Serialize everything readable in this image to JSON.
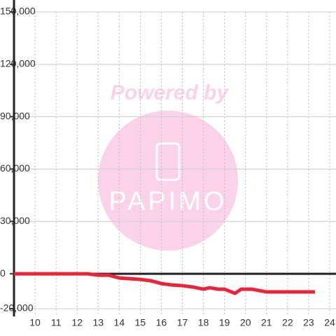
{
  "chart_data": {
    "type": "line",
    "watermark": {
      "top": "Powered by",
      "brand": "PAPIMO"
    },
    "x": [
      9,
      12.5,
      13,
      13.5,
      14,
      14.5,
      15,
      15.5,
      16,
      16.5,
      17,
      17.5,
      18,
      18.3,
      18.7,
      19,
      19.5,
      19.8,
      20.3,
      21,
      22,
      23.3
    ],
    "series": [
      {
        "color": "#e8253a",
        "values": [
          0,
          0,
          -800,
          -800,
          -2400,
          -2800,
          -3200,
          -4000,
          -5600,
          -6400,
          -6800,
          -7600,
          -8800,
          -8000,
          -8800,
          -8800,
          -11200,
          -8800,
          -8800,
          -10400,
          -10400,
          -10400
        ]
      }
    ],
    "xlim": [
      9,
      24.3
    ],
    "xticks": [
      10,
      11,
      12,
      13,
      14,
      15,
      16,
      17,
      18,
      19,
      20,
      21,
      22,
      23,
      24
    ],
    "ylim": [
      -20000,
      150000
    ],
    "yticks": [
      {
        "value": -20000,
        "label": "-20,000"
      },
      0,
      {
        "value": 30000,
        "label": "30,000"
      },
      {
        "value": 60000,
        "label": "60,000"
      },
      {
        "value": 90000,
        "label": "90,000"
      },
      {
        "value": 120000,
        "label": "120,000"
      },
      {
        "value": 150000,
        "label": "150,000"
      }
    ],
    "grid": true
  }
}
